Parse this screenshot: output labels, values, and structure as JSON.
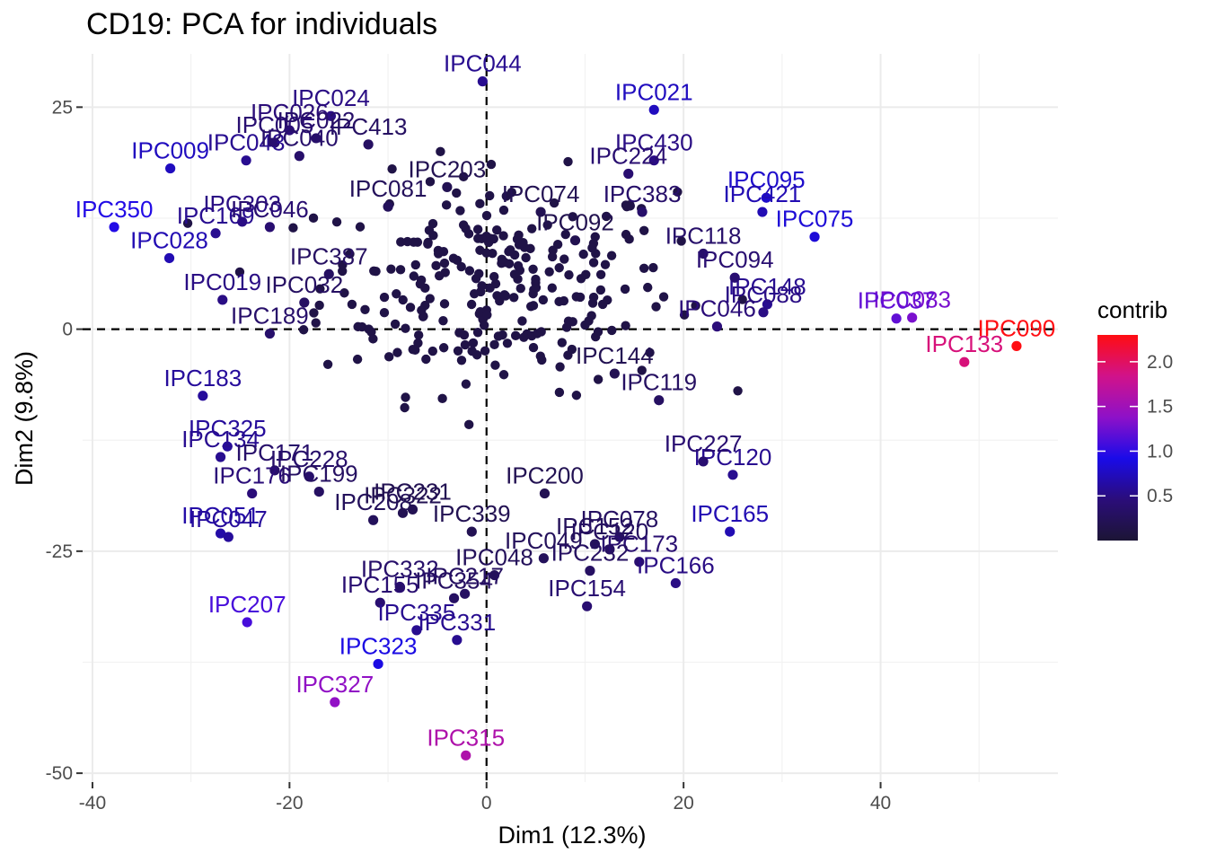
{
  "chart_data": {
    "type": "scatter",
    "title": "CD19: PCA for individuals",
    "xlabel": "Dim1 (12.3%)",
    "ylabel": "Dim2 (9.8%)",
    "xlim": [
      -41,
      58
    ],
    "ylim": [
      -51,
      31
    ],
    "x_ticks": [
      -40,
      -20,
      0,
      20,
      40
    ],
    "y_ticks": [
      -50,
      -25,
      0,
      25
    ],
    "grid": true,
    "reference_lines": {
      "x": 0,
      "y": 0,
      "style": "dashed"
    },
    "legend": {
      "title": "contrib",
      "placement": "right",
      "type": "colorbar",
      "ticks": [
        0.5,
        1.0,
        1.5,
        2.0
      ],
      "range": [
        0.0,
        2.3
      ],
      "colors": [
        "#1c1535",
        "#2b0d7a",
        "#1a0be8",
        "#8e11c8",
        "#d1128a",
        "#ff0d12"
      ]
    },
    "points": [
      {
        "label": "IPC090",
        "x": 53.8,
        "y": -1.9,
        "contrib": 2.3
      },
      {
        "label": "IPC133",
        "x": 48.5,
        "y": -3.7,
        "contrib": 1.9
      },
      {
        "label": "IPC083",
        "x": 43.2,
        "y": 1.3,
        "contrib": 1.3
      },
      {
        "label": "IPC037",
        "x": 41.6,
        "y": 1.2,
        "contrib": 1.2
      },
      {
        "label": "IPC075",
        "x": 33.3,
        "y": 10.4,
        "contrib": 0.85
      },
      {
        "label": "IPC095",
        "x": 28.4,
        "y": 14.8,
        "contrib": 0.8
      },
      {
        "label": "IPC421",
        "x": 28.0,
        "y": 13.2,
        "contrib": 0.7
      },
      {
        "label": "IPC148",
        "x": 28.5,
        "y": 2.8,
        "contrib": 0.55
      },
      {
        "label": "IPC088",
        "x": 28.1,
        "y": 1.9,
        "contrib": 0.5
      },
      {
        "label": "IPC046",
        "x": 23.4,
        "y": 0.3,
        "contrib": 0.45
      },
      {
        "label": "IPC021",
        "x": 17.0,
        "y": 24.7,
        "contrib": 0.75
      },
      {
        "label": "IPC430",
        "x": 17.0,
        "y": 19.0,
        "contrib": 0.5
      },
      {
        "label": "IPC224",
        "x": 14.4,
        "y": 17.5,
        "contrib": 0.4
      },
      {
        "label": "IPC383",
        "x": 15.8,
        "y": 13.2,
        "contrib": 0.35
      },
      {
        "label": "IPC044",
        "x": -0.4,
        "y": 27.9,
        "contrib": 0.55
      },
      {
        "label": "IPC024",
        "x": -15.8,
        "y": 24.0,
        "contrib": 0.5
      },
      {
        "label": "IPC026",
        "x": -20.0,
        "y": 22.4,
        "contrib": 0.45
      },
      {
        "label": "IPC413",
        "x": -12.0,
        "y": 20.8,
        "contrib": 0.3
      },
      {
        "label": "IPC022",
        "x": -17.3,
        "y": 21.5,
        "contrib": 0.35
      },
      {
        "label": "IPC005",
        "x": -21.5,
        "y": 21.0,
        "contrib": 0.4
      },
      {
        "label": "IPC009",
        "x": -32.1,
        "y": 18.1,
        "contrib": 0.75
      },
      {
        "label": "IPC043",
        "x": -24.4,
        "y": 19.0,
        "contrib": 0.55
      },
      {
        "label": "IPC040",
        "x": -19.0,
        "y": 19.5,
        "contrib": 0.35
      },
      {
        "label": "IPC350",
        "x": -37.8,
        "y": 11.5,
        "contrib": 0.95
      },
      {
        "label": "IPC028",
        "x": -32.2,
        "y": 8.0,
        "contrib": 0.7
      },
      {
        "label": "IPC169",
        "x": -27.5,
        "y": 10.8,
        "contrib": 0.55
      },
      {
        "label": "IPC303",
        "x": -24.8,
        "y": 12.1,
        "contrib": 0.5
      },
      {
        "label": "IPC046",
        "x": -22.0,
        "y": 11.5,
        "contrib": 0.4
      },
      {
        "label": "IPC387",
        "x": -16.0,
        "y": 6.2,
        "contrib": 0.3
      },
      {
        "label": "IPC019",
        "x": -26.8,
        "y": 3.3,
        "contrib": 0.5
      },
      {
        "label": "IPC032",
        "x": -18.5,
        "y": 3.0,
        "contrib": 0.3
      },
      {
        "label": "IPC081",
        "x": -10.0,
        "y": 13.8,
        "contrib": 0.25
      },
      {
        "label": "IPC203",
        "x": -4.0,
        "y": 16.0,
        "contrib": 0.2
      },
      {
        "label": "IPC074",
        "x": 5.5,
        "y": 13.2,
        "contrib": 0.2
      },
      {
        "label": "IPC092",
        "x": 9.0,
        "y": 10.0,
        "contrib": 0.18
      },
      {
        "label": "IPC118",
        "x": 22.0,
        "y": 8.5,
        "contrib": 0.35
      },
      {
        "label": "IPC094",
        "x": 25.2,
        "y": 5.8,
        "contrib": 0.4
      },
      {
        "label": "IPC189",
        "x": -22.0,
        "y": -0.5,
        "contrib": 0.35
      },
      {
        "label": "IPC144",
        "x": 13.0,
        "y": -5.0,
        "contrib": 0.2
      },
      {
        "label": "IPC119",
        "x": 17.5,
        "y": -8.0,
        "contrib": 0.3
      },
      {
        "label": "IPC183",
        "x": -28.8,
        "y": -7.5,
        "contrib": 0.6
      },
      {
        "label": "IPC325",
        "x": -26.3,
        "y": -13.2,
        "contrib": 0.6
      },
      {
        "label": "IPC134",
        "x": -27.0,
        "y": -14.4,
        "contrib": 0.55
      },
      {
        "label": "IPC171",
        "x": -21.5,
        "y": -15.9,
        "contrib": 0.35
      },
      {
        "label": "IPC176",
        "x": -23.8,
        "y": -18.5,
        "contrib": 0.45
      },
      {
        "label": "IPC228",
        "x": -18.0,
        "y": -16.6,
        "contrib": 0.35
      },
      {
        "label": "IPC199",
        "x": -17.0,
        "y": -18.3,
        "contrib": 0.3
      },
      {
        "label": "IPC051",
        "x": -27.0,
        "y": -23.0,
        "contrib": 0.65
      },
      {
        "label": "IPC047",
        "x": -26.2,
        "y": -23.4,
        "contrib": 0.6
      },
      {
        "label": "IPC208",
        "x": -11.5,
        "y": -21.5,
        "contrib": 0.25
      },
      {
        "label": "IPC322",
        "x": -8.5,
        "y": -20.7,
        "contrib": 0.2
      },
      {
        "label": "IPC231",
        "x": -7.5,
        "y": -20.3,
        "contrib": 0.2
      },
      {
        "label": "IPC339",
        "x": -1.5,
        "y": -22.8,
        "contrib": 0.2
      },
      {
        "label": "IPC200",
        "x": 5.9,
        "y": -18.5,
        "contrib": 0.2
      },
      {
        "label": "IPC120",
        "x": 25.0,
        "y": -16.4,
        "contrib": 0.55
      },
      {
        "label": "IPC227",
        "x": 22.0,
        "y": -14.9,
        "contrib": 0.4
      },
      {
        "label": "IPC078",
        "x": 13.5,
        "y": -23.4,
        "contrib": 0.3
      },
      {
        "label": "IPC165",
        "x": 24.7,
        "y": -22.8,
        "contrib": 0.7
      },
      {
        "label": "IPC152",
        "x": 11.0,
        "y": -24.2,
        "contrib": 0.25
      },
      {
        "label": "IPC120",
        "x": 12.5,
        "y": -24.8,
        "contrib": 0.3
      },
      {
        "label": "IPC049",
        "x": 5.8,
        "y": -25.8,
        "contrib": 0.25
      },
      {
        "label": "IPC173",
        "x": 15.5,
        "y": -26.2,
        "contrib": 0.4
      },
      {
        "label": "IPC166",
        "x": 19.2,
        "y": -28.6,
        "contrib": 0.5
      },
      {
        "label": "IPC232",
        "x": 10.5,
        "y": -27.2,
        "contrib": 0.3
      },
      {
        "label": "IPC154",
        "x": 10.2,
        "y": -31.2,
        "contrib": 0.4
      },
      {
        "label": "IPC048",
        "x": 0.8,
        "y": -27.7,
        "contrib": 0.25
      },
      {
        "label": "IPC217",
        "x": -2.2,
        "y": -29.8,
        "contrib": 0.3
      },
      {
        "label": "IPC354",
        "x": -3.3,
        "y": -30.3,
        "contrib": 0.3
      },
      {
        "label": "IPC332",
        "x": -8.8,
        "y": -29.0,
        "contrib": 0.35
      },
      {
        "label": "IPC155",
        "x": -10.8,
        "y": -30.8,
        "contrib": 0.4
      },
      {
        "label": "IPC335",
        "x": -7.1,
        "y": -33.9,
        "contrib": 0.55
      },
      {
        "label": "IPC331",
        "x": -3.0,
        "y": -35.0,
        "contrib": 0.55
      },
      {
        "label": "IPC323",
        "x": -11.0,
        "y": -37.7,
        "contrib": 0.9
      },
      {
        "label": "IPC207",
        "x": -24.3,
        "y": -33.0,
        "contrib": 1.1
      },
      {
        "label": "IPC327",
        "x": -15.4,
        "y": -42.0,
        "contrib": 1.4
      },
      {
        "label": "IPC315",
        "x": -2.1,
        "y": -48.0,
        "contrib": 1.6
      }
    ],
    "unlabeled_background_point_count_note": ""
  }
}
